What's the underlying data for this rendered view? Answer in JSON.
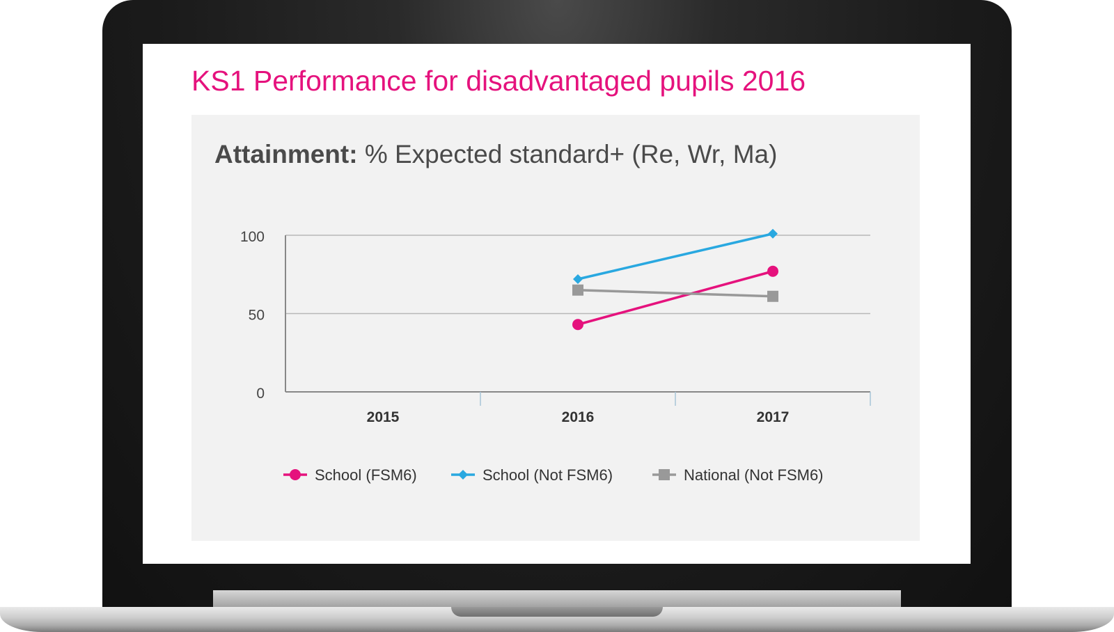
{
  "slide": {
    "title": "KS1 Performance for disadvantaged pupils 2016"
  },
  "chart_data": {
    "type": "line",
    "title_bold": "Attainment:",
    "title_rest": " % Expected standard+ (Re, Wr, Ma)",
    "categories": [
      "2015",
      "2016",
      "2017"
    ],
    "y_ticks": [
      "0",
      "50",
      "100"
    ],
    "ylim": [
      0,
      100
    ],
    "grid": true,
    "legend_position": "bottom",
    "series": [
      {
        "name": "School (FSM6)",
        "color": "#e5127d",
        "marker": "circle",
        "values": [
          null,
          43,
          77
        ]
      },
      {
        "name": "School (Not FSM6)",
        "color": "#29a8e0",
        "marker": "diamond",
        "values": [
          null,
          72,
          101
        ]
      },
      {
        "name": "National (Not FSM6)",
        "color": "#999999",
        "marker": "square",
        "values": [
          null,
          65,
          61
        ]
      }
    ]
  }
}
